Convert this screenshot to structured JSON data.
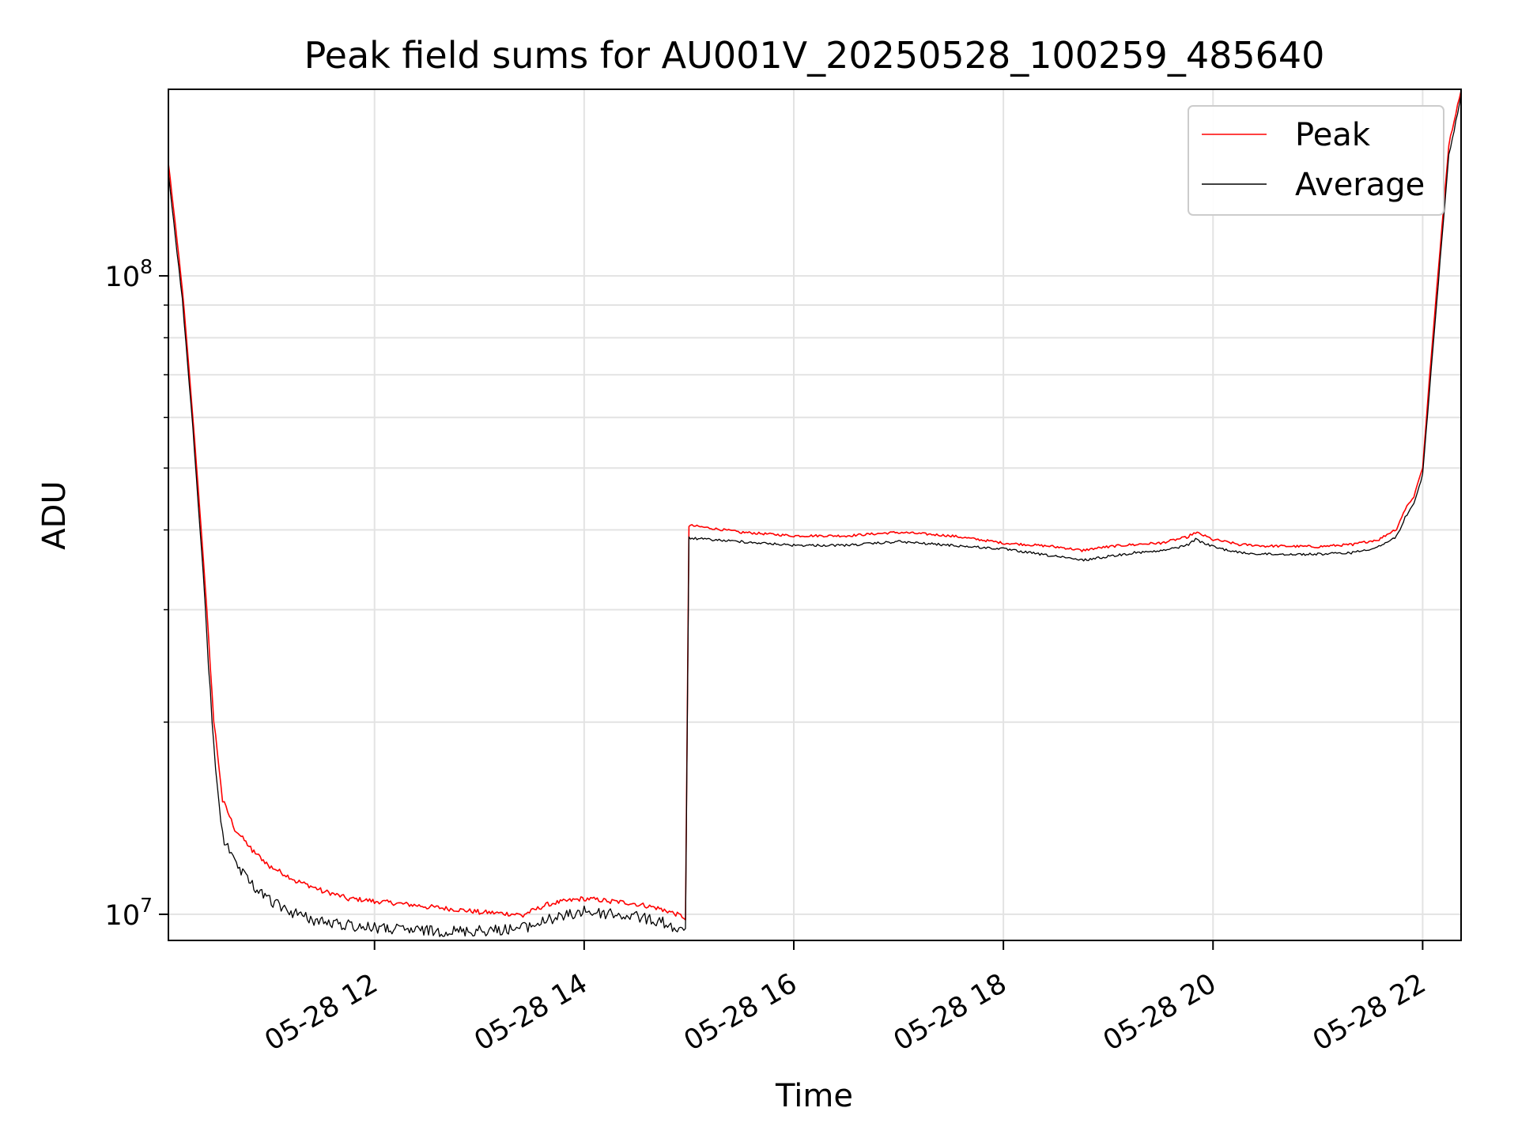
{
  "chart_data": {
    "type": "line",
    "title": "Peak field sums for AU001V_20250528_100259_485640",
    "xlabel": "Time",
    "ylabel": "ADU",
    "y_scale": "log",
    "ylim": [
      9100000,
      196000000
    ],
    "xlim": [
      "2025-05-28 10:02",
      "2025-05-28 22:22"
    ],
    "x_ticks": [
      {
        "value": "2025-05-28 12:00",
        "label": "05-28 12"
      },
      {
        "value": "2025-05-28 14:00",
        "label": "05-28 14"
      },
      {
        "value": "2025-05-28 16:00",
        "label": "05-28 16"
      },
      {
        "value": "2025-05-28 18:00",
        "label": "05-28 18"
      },
      {
        "value": "2025-05-28 20:00",
        "label": "05-28 20"
      },
      {
        "value": "2025-05-28 22:00",
        "label": "05-28 22"
      }
    ],
    "y_ticks": [
      {
        "value": 10000000,
        "base": "10",
        "exp": "7"
      },
      {
        "value": 100000000,
        "base": "10",
        "exp": "8"
      }
    ],
    "grid": true,
    "legend_position": "top-right",
    "series": [
      {
        "name": "Peak",
        "color": "#ff0000",
        "x": [
          "2025-05-28 10:02",
          "2025-05-28 10:10",
          "2025-05-28 10:16",
          "2025-05-28 10:22",
          "2025-05-28 10:28",
          "2025-05-28 10:33",
          "2025-05-28 10:40",
          "2025-05-28 10:50",
          "2025-05-28 11:00",
          "2025-05-28 11:15",
          "2025-05-28 11:30",
          "2025-05-28 11:45",
          "2025-05-28 12:00",
          "2025-05-28 12:30",
          "2025-05-28 13:00",
          "2025-05-28 13:25",
          "2025-05-28 13:40",
          "2025-05-28 14:00",
          "2025-05-28 14:15",
          "2025-05-28 14:30",
          "2025-05-28 14:45",
          "2025-05-28 14:58",
          "2025-05-28 15:00",
          "2025-05-28 15:30",
          "2025-05-28 16:00",
          "2025-05-28 16:30",
          "2025-05-28 17:00",
          "2025-05-28 17:30",
          "2025-05-28 18:00",
          "2025-05-28 18:30",
          "2025-05-28 18:45",
          "2025-05-28 19:00",
          "2025-05-28 19:15",
          "2025-05-28 19:30",
          "2025-05-28 19:45",
          "2025-05-28 19:50",
          "2025-05-28 20:00",
          "2025-05-28 20:15",
          "2025-05-28 20:30",
          "2025-05-28 21:00",
          "2025-05-28 21:20",
          "2025-05-28 21:35",
          "2025-05-28 21:45",
          "2025-05-28 21:50",
          "2025-05-28 21:55",
          "2025-05-28 22:00",
          "2025-05-28 22:05",
          "2025-05-28 22:10",
          "2025-05-28 22:15",
          "2025-05-28 22:22"
        ],
        "values": [
          150000000,
          95000000,
          60000000,
          36000000,
          20000000,
          15000000,
          13500000,
          12500000,
          11800000,
          11200000,
          10800000,
          10500000,
          10400000,
          10200000,
          10000000,
          9900000,
          10300000,
          10500000,
          10400000,
          10300000,
          10100000,
          9800000,
          40500000,
          39500000,
          39000000,
          39000000,
          39500000,
          39000000,
          38000000,
          37500000,
          37000000,
          37500000,
          37800000,
          38000000,
          38800000,
          39500000,
          38500000,
          37800000,
          37600000,
          37500000,
          37800000,
          38500000,
          40000000,
          43000000,
          45000000,
          50000000,
          75000000,
          110000000,
          160000000,
          195000000
        ]
      },
      {
        "name": "Average",
        "color": "#000000",
        "x": [
          "2025-05-28 10:02",
          "2025-05-28 10:10",
          "2025-05-28 10:16",
          "2025-05-28 10:22",
          "2025-05-28 10:28",
          "2025-05-28 10:33",
          "2025-05-28 10:40",
          "2025-05-28 10:50",
          "2025-05-28 11:00",
          "2025-05-28 11:15",
          "2025-05-28 11:30",
          "2025-05-28 11:45",
          "2025-05-28 12:00",
          "2025-05-28 12:30",
          "2025-05-28 13:00",
          "2025-05-28 13:25",
          "2025-05-28 13:40",
          "2025-05-28 14:00",
          "2025-05-28 14:15",
          "2025-05-28 14:30",
          "2025-05-28 14:45",
          "2025-05-28 14:58",
          "2025-05-28 15:00",
          "2025-05-28 15:30",
          "2025-05-28 16:00",
          "2025-05-28 16:30",
          "2025-05-28 17:00",
          "2025-05-28 17:30",
          "2025-05-28 18:00",
          "2025-05-28 18:30",
          "2025-05-28 18:45",
          "2025-05-28 19:00",
          "2025-05-28 19:15",
          "2025-05-28 19:30",
          "2025-05-28 19:45",
          "2025-05-28 19:50",
          "2025-05-28 20:00",
          "2025-05-28 20:15",
          "2025-05-28 20:30",
          "2025-05-28 21:00",
          "2025-05-28 21:20",
          "2025-05-28 21:35",
          "2025-05-28 21:45",
          "2025-05-28 21:50",
          "2025-05-28 21:55",
          "2025-05-28 22:00",
          "2025-05-28 22:05",
          "2025-05-28 22:10",
          "2025-05-28 22:15",
          "2025-05-28 22:22"
        ],
        "values": [
          145000000,
          92000000,
          58000000,
          34000000,
          18500000,
          13500000,
          12200000,
          11300000,
          10700000,
          10200000,
          9900000,
          9800000,
          9700000,
          9600000,
          9600000,
          9700000,
          10000000,
          10300000,
          10200000,
          10100000,
          9900000,
          9500000,
          39000000,
          38500000,
          38000000,
          38000000,
          38500000,
          38000000,
          37500000,
          36500000,
          36000000,
          36500000,
          37000000,
          37200000,
          38000000,
          38800000,
          37800000,
          37000000,
          36800000,
          36800000,
          37000000,
          37800000,
          39200000,
          42000000,
          44000000,
          49000000,
          72000000,
          106000000,
          155000000,
          192000000
        ]
      }
    ]
  }
}
